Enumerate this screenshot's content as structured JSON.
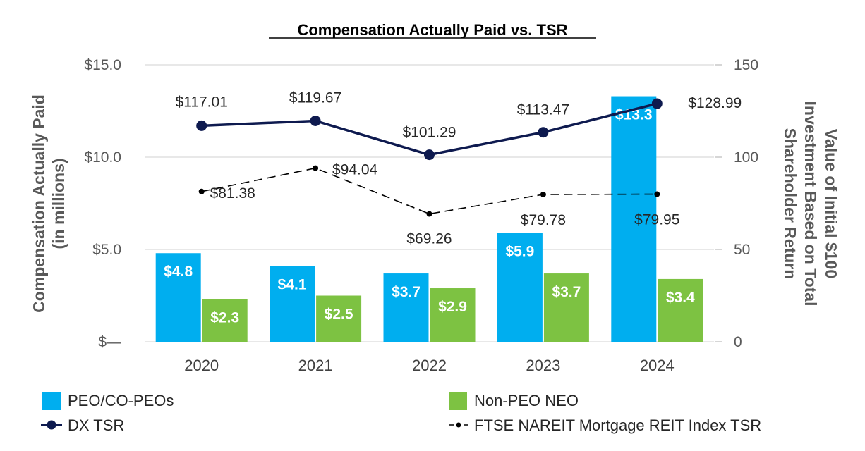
{
  "chart_data": {
    "type": "bar",
    "title": "Compensation Actually Paid vs. TSR",
    "categories": [
      "2020",
      "2021",
      "2022",
      "2023",
      "2024"
    ],
    "y_left": {
      "label_lines": [
        "Compensation Actually Paid",
        "(in millions)"
      ],
      "range": [
        0,
        15
      ],
      "ticks": [
        0,
        5,
        10,
        15
      ],
      "tick_labels": [
        "$—",
        "$5.0",
        "$10.0",
        "$15.0"
      ]
    },
    "y_right": {
      "label_lines": [
        "Value of Initial $100",
        "Investment Based on Total",
        "Shareholder Return"
      ],
      "range": [
        0,
        150
      ],
      "ticks": [
        0,
        50,
        100,
        150
      ],
      "tick_labels": [
        "0",
        "50",
        "100",
        "150"
      ]
    },
    "series": [
      {
        "name": "PEO/CO-PEOs",
        "kind": "bar",
        "axis": "left",
        "color": "#00aeef",
        "values": [
          4.8,
          4.1,
          3.7,
          5.9,
          13.3
        ],
        "labels": [
          "$4.8",
          "$4.1",
          "$3.7",
          "$5.9",
          "$13.3"
        ]
      },
      {
        "name": "Non-PEO NEO",
        "kind": "bar",
        "axis": "left",
        "color": "#7dc242",
        "values": [
          2.3,
          2.5,
          2.9,
          3.7,
          3.4
        ],
        "labels": [
          "$2.3",
          "$2.5",
          "$2.9",
          "$3.7",
          "$3.4"
        ]
      },
      {
        "name": "DX TSR",
        "kind": "line",
        "axis": "right",
        "color": "#0e1a4f",
        "values": [
          117.01,
          119.67,
          101.29,
          113.47,
          128.99
        ],
        "labels": [
          "$117.01",
          "$119.67",
          "$101.29",
          "$113.47",
          "$128.99"
        ]
      },
      {
        "name": "FTSE NAREIT Mortgage REIT Index TSR",
        "kind": "dashed-line",
        "axis": "right",
        "color": "#000000",
        "values": [
          81.38,
          94.04,
          69.26,
          79.78,
          79.95
        ],
        "labels": [
          "$81.38",
          "$94.04",
          "$69.26",
          "$79.78",
          "$79.95"
        ]
      }
    ],
    "legend": [
      {
        "name": "PEO/CO-PEOs",
        "marker": "square"
      },
      {
        "name": "Non-PEO NEO",
        "marker": "square"
      },
      {
        "name": "DX TSR",
        "marker": "line-dot"
      },
      {
        "name": "FTSE NAREIT Mortgage REIT Index TSR",
        "marker": "dashed-line-dot"
      }
    ],
    "legend_position": "bottom",
    "grid": true
  }
}
